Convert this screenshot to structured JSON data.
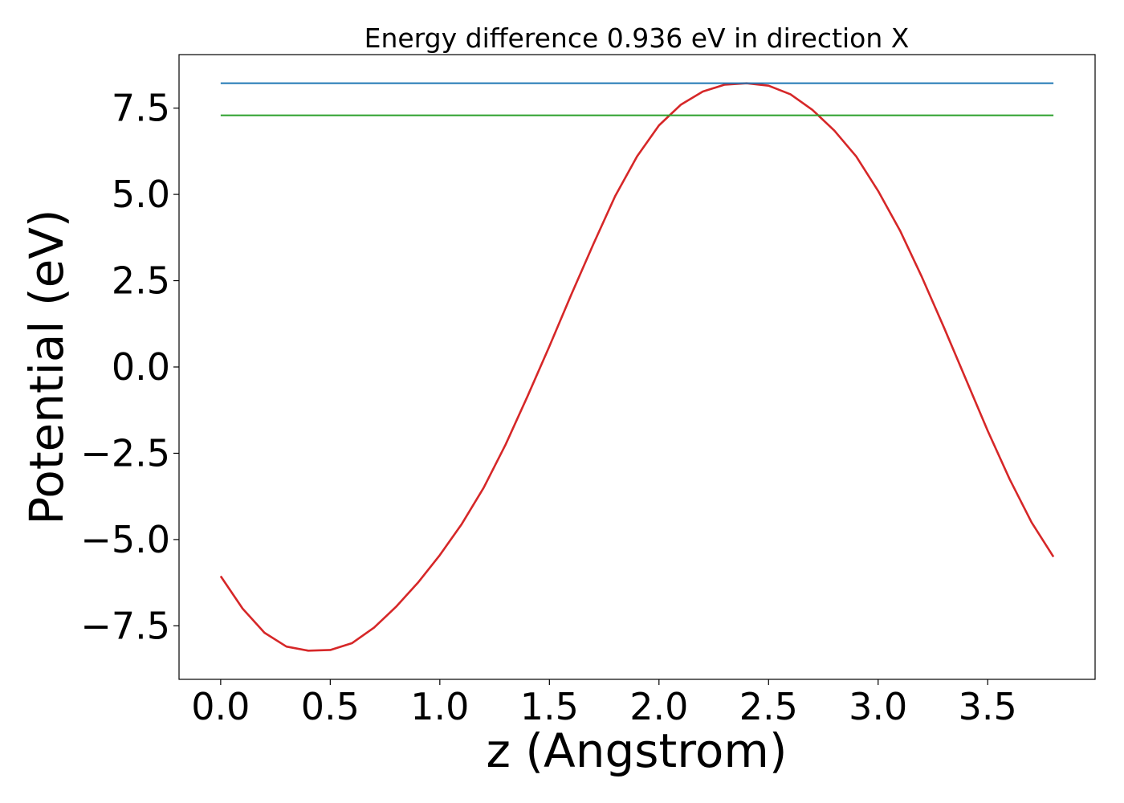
{
  "chart_data": {
    "type": "line",
    "title": "Energy difference 0.936 eV in direction X",
    "xlabel": "z (Angstrom)",
    "ylabel": "Potential (eV)",
    "xlim": [
      -0.19,
      3.99
    ],
    "ylim": [
      -9.05,
      9.05
    ],
    "grid": false,
    "xticks": [
      {
        "value": 0.0,
        "label": "0.0"
      },
      {
        "value": 0.5,
        "label": "0.5"
      },
      {
        "value": 1.0,
        "label": "1.0"
      },
      {
        "value": 1.5,
        "label": "1.5"
      },
      {
        "value": 2.0,
        "label": "2.0"
      },
      {
        "value": 2.5,
        "label": "2.5"
      },
      {
        "value": 3.0,
        "label": "3.0"
      },
      {
        "value": 3.5,
        "label": "3.5"
      }
    ],
    "yticks": [
      {
        "value": -7.5,
        "label": "−7.5"
      },
      {
        "value": -5.0,
        "label": "−5.0"
      },
      {
        "value": -2.5,
        "label": "−2.5"
      },
      {
        "value": 0.0,
        "label": "0.0"
      },
      {
        "value": 2.5,
        "label": "2.5"
      },
      {
        "value": 5.0,
        "label": "5.0"
      },
      {
        "value": 7.5,
        "label": "7.5"
      }
    ],
    "series": [
      {
        "color": "#d62728",
        "x": [
          0.0,
          0.1,
          0.2,
          0.3,
          0.4,
          0.5,
          0.6,
          0.7,
          0.8,
          0.9,
          1.0,
          1.1,
          1.2,
          1.3,
          1.4,
          1.5,
          1.6,
          1.7,
          1.8,
          1.9,
          2.0,
          2.1,
          2.2,
          2.3,
          2.4,
          2.5,
          2.6,
          2.7,
          2.8,
          2.9,
          3.0,
          3.1,
          3.2,
          3.3,
          3.4,
          3.5,
          3.6,
          3.7,
          3.8
        ],
        "y": [
          -6.06,
          -7.0,
          -7.7,
          -8.1,
          -8.22,
          -8.2,
          -8.0,
          -7.55,
          -6.95,
          -6.25,
          -5.45,
          -4.55,
          -3.5,
          -2.25,
          -0.85,
          0.6,
          2.1,
          3.55,
          4.95,
          6.1,
          7.0,
          7.6,
          7.98,
          8.18,
          8.22,
          8.15,
          7.9,
          7.45,
          6.85,
          6.1,
          5.1,
          3.95,
          2.6,
          1.15,
          -0.35,
          -1.85,
          -3.25,
          -4.5,
          -5.5
        ]
      },
      {
        "color": "#1f77b4",
        "x": [
          0.0,
          3.8
        ],
        "y": [
          8.22,
          8.22
        ]
      },
      {
        "color": "#2ca02c",
        "x": [
          0.0,
          3.8
        ],
        "y": [
          7.29,
          7.29
        ]
      }
    ]
  }
}
